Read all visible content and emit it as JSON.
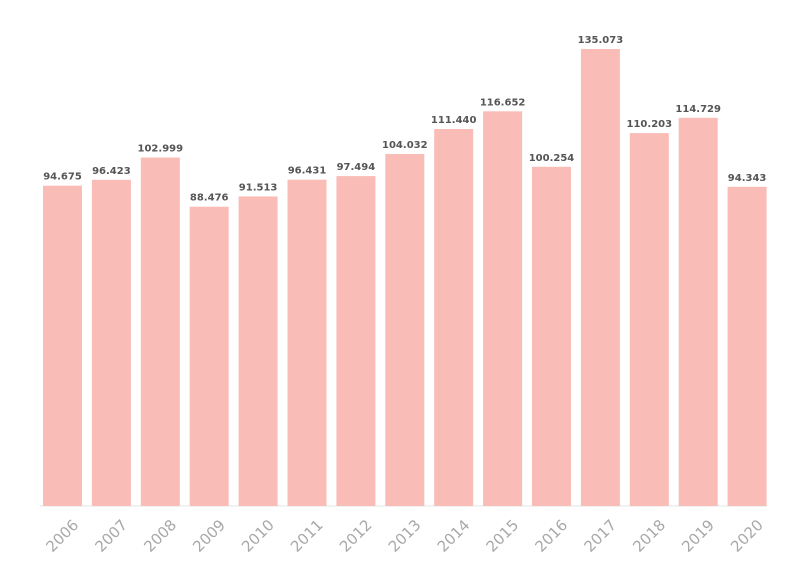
{
  "chart_data": {
    "type": "bar",
    "categories": [
      "2006",
      "2007",
      "2008",
      "2009",
      "2010",
      "2011",
      "2012",
      "2013",
      "2014",
      "2015",
      "2016",
      "2017",
      "2018",
      "2019",
      "2020"
    ],
    "values": [
      94.675,
      96.423,
      102.999,
      88.476,
      91.513,
      96.431,
      97.494,
      104.032,
      111.44,
      116.652,
      100.254,
      135.073,
      110.203,
      114.729,
      94.343
    ],
    "value_labels": [
      "94.675",
      "96.423",
      "102.999",
      "88.476",
      "91.513",
      "96.431",
      "97.494",
      "104.032",
      "111.440",
      "116.652",
      "100.254",
      "135.073",
      "110.203",
      "114.729",
      "94.343"
    ],
    "ylim": [
      0,
      135.073
    ],
    "grid": false,
    "bar_color": "#fabcb6",
    "label_color": "#555555",
    "tick_color": "#a8a8a8"
  }
}
